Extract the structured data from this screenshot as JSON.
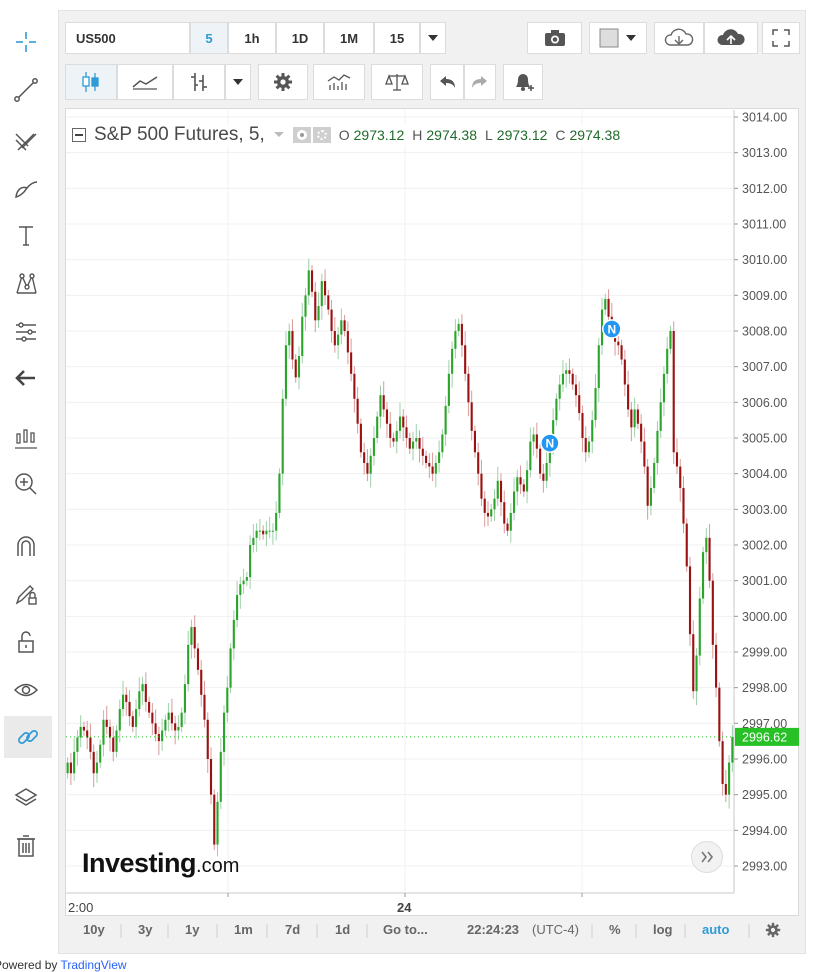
{
  "toolbar": {
    "symbol": "US500",
    "intervals": [
      "5",
      "1h",
      "1D",
      "1M",
      "15"
    ],
    "active_interval": "5"
  },
  "legend": {
    "title": "S&P 500 Futures, 5,",
    "o_label": "O",
    "o_value": "2973.12",
    "h_label": "H",
    "h_value": "2974.38",
    "l_label": "L",
    "l_value": "2973.12",
    "c_label": "C",
    "c_value": "2974.38"
  },
  "watermark": {
    "brand": "Investing",
    "suffix": ".com"
  },
  "bottom_bar": {
    "ranges": [
      "10y",
      "3y",
      "1y",
      "1m",
      "7d",
      "1d"
    ],
    "goto": "Go to...",
    "time": "22:24:23",
    "tz": "(UTC-4)",
    "pct": "%",
    "log": "log",
    "auto": "auto"
  },
  "footer": {
    "prefix": "Powered by ",
    "link": "TradingView"
  },
  "colors": {
    "up": "#2aa52a",
    "down": "#9b1111",
    "last_price": "#27c127",
    "accent": "#2f80ed"
  },
  "chart_data": {
    "type": "candlestick",
    "ylim": [
      2992.5,
      3014.2
    ],
    "y_ticks": [
      "3014.00",
      "3013.00",
      "3012.00",
      "3011.00",
      "3010.00",
      "3009.00",
      "3008.00",
      "3007.00",
      "3006.00",
      "3005.00",
      "3004.00",
      "3003.00",
      "3002.00",
      "3001.00",
      "3000.00",
      "2999.00",
      "2998.00",
      "2997.00",
      "2996.00",
      "2995.00",
      "2994.00",
      "2993.00"
    ],
    "x_labels": [
      "2:00",
      "24"
    ],
    "last_price": "2996.62",
    "markers": [
      {
        "label": "N",
        "index": 148
      },
      {
        "label": "N",
        "index": 167
      }
    ],
    "close": [
      2995.9,
      2995.6,
      2996.2,
      2996.6,
      2996.9,
      2996.8,
      2996.6,
      2996.2,
      2995.6,
      2995.9,
      2996.4,
      2997.1,
      2996.9,
      2996.6,
      2996.2,
      2996.8,
      2997.4,
      2997.8,
      2997.6,
      2997.2,
      2996.9,
      2997.4,
      2997.9,
      2998.1,
      2997.6,
      2997.3,
      2997.0,
      2996.7,
      2996.5,
      2996.8,
      2997.1,
      2997.3,
      2997.0,
      2996.8,
      2996.9,
      2997.3,
      2998.1,
      2999.2,
      2999.7,
      2999.1,
      2998.5,
      2997.8,
      2997.1,
      2996.0,
      2995.0,
      2993.6,
      2994.8,
      2996.2,
      2997.3,
      2998.0,
      2999.1,
      2999.9,
      3000.6,
      3000.9,
      3001.0,
      3001.1,
      3002.0,
      3002.2,
      3002.4,
      3002.4,
      3002.3,
      3002.4,
      3002.4,
      3002.4,
      3002.9,
      3004.0,
      3006.1,
      3007.6,
      3008.0,
      3007.2,
      3006.7,
      3007.3,
      3008.4,
      3009.0,
      3009.7,
      3009.1,
      3008.3,
      3008.7,
      3009.4,
      3009.0,
      3008.6,
      3008.0,
      3007.6,
      3007.9,
      3008.3,
      3008.0,
      3007.4,
      3006.8,
      3006.1,
      3005.4,
      3004.6,
      3004.3,
      3004.0,
      3004.5,
      3005.0,
      3005.6,
      3006.2,
      3005.8,
      3005.4,
      3005.0,
      3004.9,
      3005.2,
      3005.6,
      3005.3,
      3005.0,
      3004.7,
      3004.9,
      3005.0,
      3004.7,
      3004.5,
      3004.3,
      3004.2,
      3004.0,
      3004.3,
      3004.6,
      3005.1,
      3005.9,
      3006.8,
      3007.5,
      3008.0,
      3008.2,
      3007.6,
      3006.8,
      3006.0,
      3005.2,
      3004.6,
      3004.0,
      3003.3,
      3002.9,
      3002.8,
      3003.0,
      3003.3,
      3003.8,
      3003.2,
      3002.6,
      3002.4,
      3002.9,
      3003.5,
      3003.9,
      3003.7,
      3003.5,
      3004.1,
      3004.9,
      3005.1,
      3004.7,
      3004.0,
      3003.8,
      3004.3,
      3004.8,
      3005.5,
      3006.1,
      3006.5,
      3006.8,
      3006.9,
      3006.8,
      3006.5,
      3006.2,
      3005.7,
      3005.0,
      3004.6,
      3004.9,
      3005.5,
      3006.4,
      3007.6,
      3008.6,
      3008.9,
      3008.4,
      3008.0,
      3007.7,
      3007.6,
      3007.2,
      3006.5,
      3005.8,
      3005.3,
      3005.8,
      3005.4,
      3004.9,
      3004.2,
      3003.1,
      3003.6,
      3004.3,
      3005.2,
      3006.0,
      3006.8,
      3007.5,
      3008.0,
      3004.6,
      3004.2,
      3003.6,
      3002.6,
      3001.4,
      2999.5,
      2997.9,
      2998.9,
      3000.5,
      3001.8,
      3002.2,
      3001.0,
      2999.2,
      2998.0,
      2996.5,
      2995.3,
      2995.0,
      2995.9,
      2996.62
    ]
  }
}
